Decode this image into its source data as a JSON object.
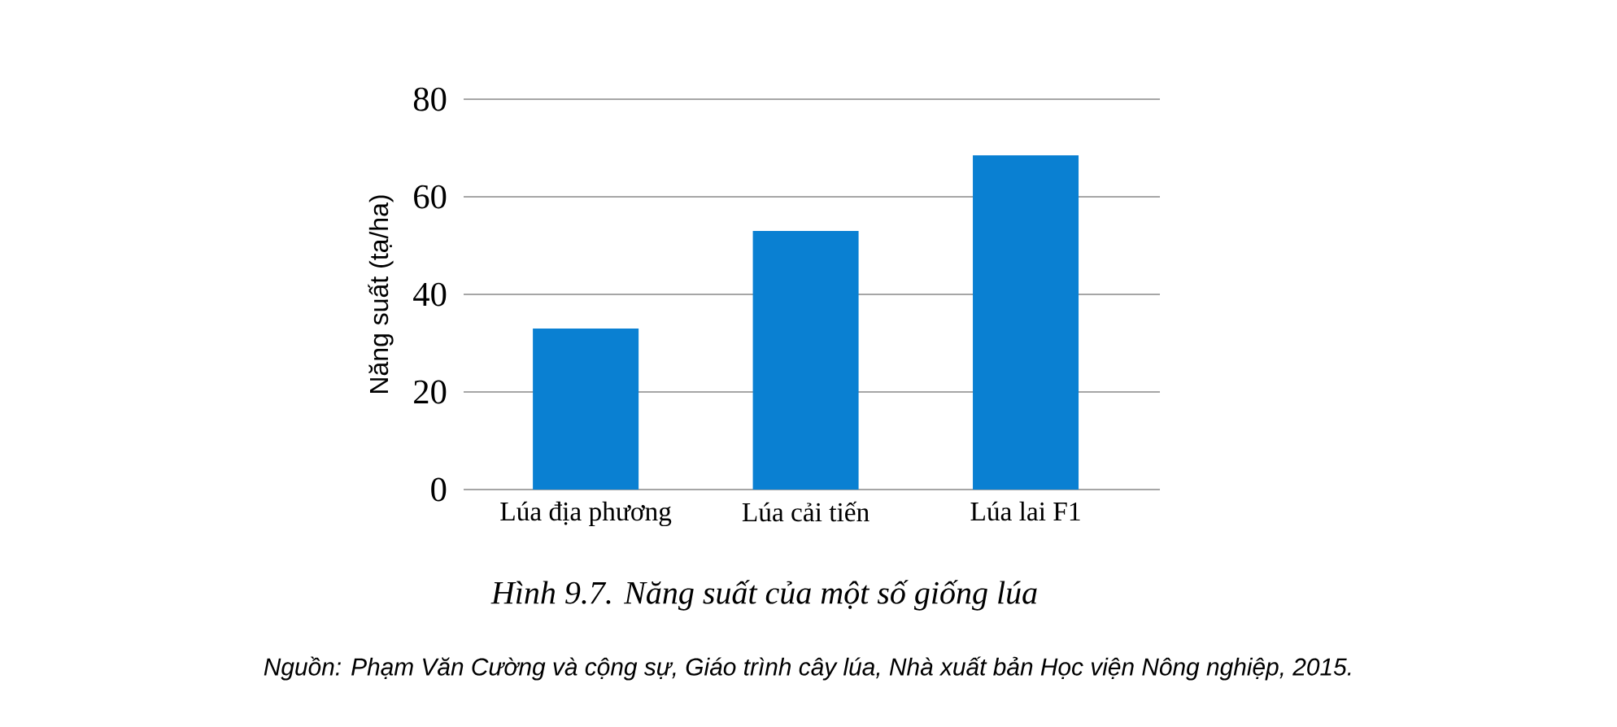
{
  "chart_data": {
    "type": "bar",
    "title": "*Hình 9.7. Năng suất của một số giống lúa*",
    "ylabel": "Năng suất (tạ/ha)",
    "categories": [
      "Lúa địa phương",
      "Lúa cải tiến",
      "Lúa lai F1"
    ],
    "values": [
      33,
      53,
      68.5
    ],
    "color": "#0a80d2",
    "ylim": [
      0,
      80
    ],
    "yticks": [
      0,
      20,
      40,
      60,
      80
    ],
    "grid": "y",
    "annotations": [
      "*Nguồn: Phạm Văn Cường và cộng sự, Giáo trình cây lúa, Nhà xuất bản Học viện Nông nghiệp, 2015.*"
    ]
  }
}
